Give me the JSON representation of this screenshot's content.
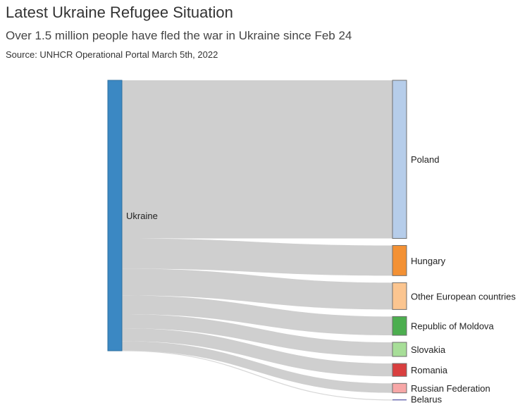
{
  "header": {
    "title": "Latest Ukraine Refugee Situation",
    "subtitle": "Over 1.5 million people have fled the war in Ukraine since Feb 24",
    "source": "Source: UNHCR Operational Portal March 5th, 2022"
  },
  "chart_data": {
    "type": "sankey",
    "title": "Latest Ukraine Refugee Situation",
    "subtitle": "Over 1.5 million people have fled the war in Ukraine since Feb 24",
    "source": "Source: UNHCR Operational Portal March 5th, 2022",
    "source_node": {
      "name": "Ukraine",
      "color": "#3b88c3"
    },
    "targets": [
      {
        "name": "Poland",
        "value": 885,
        "color": "#b6cdea"
      },
      {
        "name": "Hungary",
        "value": 169,
        "color": "#f39134"
      },
      {
        "name": "Other European countries",
        "value": 150,
        "color": "#fbc590"
      },
      {
        "name": "Republic of Moldova",
        "value": 105,
        "color": "#4cae4f"
      },
      {
        "name": "Slovakia",
        "value": 79,
        "color": "#a7de98"
      },
      {
        "name": "Romania",
        "value": 72,
        "color": "#d93f3f"
      },
      {
        "name": "Russian Federation",
        "value": 53,
        "color": "#f7a7a7"
      },
      {
        "name": "Belarus",
        "value": 1,
        "color": "#2f2f8f"
      }
    ],
    "link_color": "#cfcfcf"
  }
}
